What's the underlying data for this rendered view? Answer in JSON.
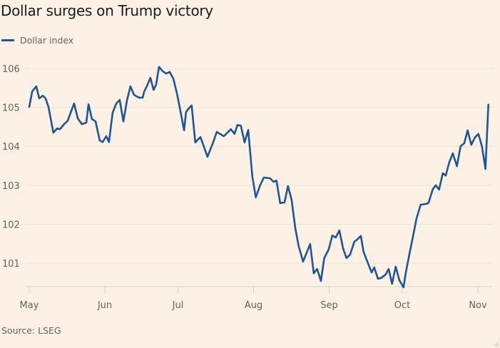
{
  "chart_data": {
    "type": "line",
    "title": "Dollar surges on Trump victory",
    "xlabel": "",
    "ylabel": "",
    "source": "Source: LSEG",
    "legend": {
      "position": "top-left",
      "entries": [
        "Dollar index"
      ]
    },
    "grid": true,
    "ylim": [
      100.4,
      106.2
    ],
    "yticks": [
      101,
      102,
      103,
      104,
      105,
      106
    ],
    "xlim_days": [
      0,
      189
    ],
    "xticks": [
      {
        "label": "May",
        "day": 0
      },
      {
        "label": "Jun",
        "day": 31
      },
      {
        "label": "Jul",
        "day": 61
      },
      {
        "label": "Aug",
        "day": 92
      },
      {
        "label": "Sep",
        "day": 123
      },
      {
        "label": "Oct",
        "day": 153
      },
      {
        "label": "Nov",
        "day": 184
      }
    ],
    "series": [
      {
        "name": "Dollar index",
        "color": "#1d5597",
        "x_days": [
          0,
          1.2,
          2.9,
          4.1,
          5.6,
          6.7,
          7.9,
          9.9,
          11.4,
          12.6,
          14.3,
          15.8,
          17.3,
          18.4,
          19.9,
          21.6,
          23.4,
          24.3,
          25.7,
          27.2,
          28.9,
          30.1,
          31.6,
          32.7,
          34.2,
          35.7,
          37.1,
          38.6,
          40.1,
          41.5,
          43,
          45,
          46.5,
          47.1,
          48.2,
          49.7,
          51,
          52,
          53.2,
          54.7,
          56.1,
          57.6,
          59.1,
          60.5,
          61.4,
          64.3,
          66.6,
          65.2,
          63.5,
          68.1,
          70.2,
          73.1,
          75.4,
          76.9,
          79.8,
          82.7,
          84.2,
          85.4,
          86.8,
          88.3,
          89.8,
          91.5,
          92.9,
          94.7,
          96.2,
          98.8,
          100.2,
          101.4,
          102.9,
          104.7,
          106.1,
          107.6,
          109.1,
          110.5,
          112.3,
          115.2,
          116.7,
          118.1,
          119.6,
          121,
          122.8,
          124.3,
          125.7,
          127.2,
          128.7,
          130.1,
          131.6,
          133.3,
          134.8,
          136,
          137.1,
          138.6,
          140.4,
          141.5,
          143,
          144.4,
          146.2,
          147.4,
          148.8,
          150.3,
          151.8,
          153.5,
          154.4,
          155.8,
          157.3,
          158.8,
          160.5,
          162.6,
          163.7,
          165.5,
          166.7,
          168.1,
          169.6,
          170.8,
          172.2,
          173.7,
          175.4,
          176.9,
          178.4,
          179.8,
          181.3,
          182.7,
          184.2,
          185.7,
          187.1,
          188.3
        ],
        "values": [
          105.01,
          105.41,
          105.54,
          105.23,
          105.3,
          105.23,
          105.01,
          104.35,
          104.46,
          104.44,
          104.57,
          104.66,
          104.92,
          105.1,
          104.72,
          104.57,
          104.61,
          105.08,
          104.7,
          104.64,
          104.15,
          104.11,
          104.26,
          104.11,
          104.86,
          105.1,
          105.19,
          104.64,
          105.19,
          105.54,
          105.32,
          105.25,
          105.25,
          105.4,
          105.54,
          105.76,
          105.45,
          105.58,
          106.04,
          105.93,
          105.87,
          105.91,
          105.74,
          105.38,
          105.1,
          104.88,
          105.05,
          104.96,
          104.41,
          104.1,
          104.24,
          103.73,
          104.1,
          104.37,
          104.26,
          104.44,
          104.32,
          104.55,
          104.53,
          104.1,
          104.42,
          103.22,
          102.69,
          103.0,
          103.2,
          103.18,
          103.09,
          103.12,
          102.54,
          102.56,
          102.98,
          102.63,
          101.9,
          101.44,
          101.04,
          101.49,
          100.74,
          100.85,
          100.54,
          101.13,
          101.35,
          101.71,
          101.66,
          101.84,
          101.38,
          101.13,
          101.22,
          101.55,
          101.62,
          101.7,
          101.29,
          101.05,
          100.76,
          100.89,
          100.6,
          100.62,
          100.71,
          100.85,
          100.47,
          100.91,
          100.56,
          100.38,
          100.74,
          101.2,
          101.66,
          102.14,
          102.5,
          102.52,
          102.54,
          102.9,
          103.0,
          102.89,
          103.31,
          103.25,
          103.58,
          103.82,
          103.49,
          104.0,
          104.08,
          104.41,
          104.04,
          104.22,
          104.32,
          103.99,
          103.42,
          105.07
        ]
      }
    ]
  }
}
